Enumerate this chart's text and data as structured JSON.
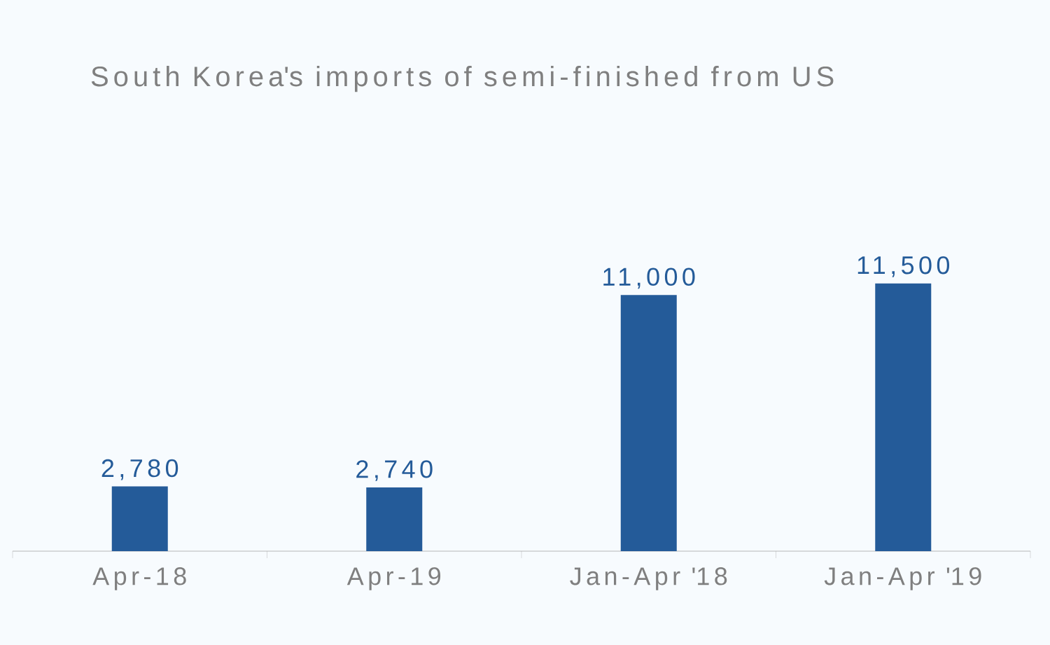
{
  "chart_data": {
    "type": "bar",
    "title": "South Korea's imports of semi-finished from US",
    "categories": [
      "Apr-18",
      "Apr-19",
      "Jan-Apr '18",
      "Jan-Apr '19"
    ],
    "values": [
      2780,
      2740,
      11000,
      11500
    ],
    "value_labels": [
      "2,780",
      "2,740",
      "11,000",
      "11,500"
    ],
    "color": "#245b99"
  }
}
